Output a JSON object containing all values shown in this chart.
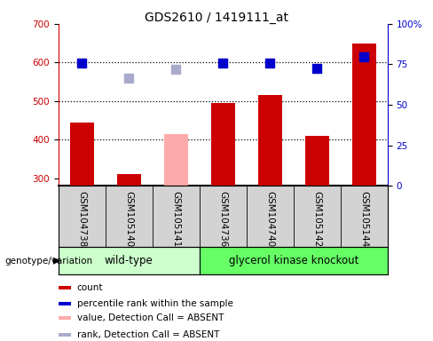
{
  "title": "GDS2610 / 1419111_at",
  "samples": [
    "GSM104738",
    "GSM105140",
    "GSM105141",
    "GSM104736",
    "GSM104740",
    "GSM105142",
    "GSM105144"
  ],
  "count_values": [
    445,
    310,
    null,
    495,
    515,
    410,
    648
  ],
  "count_absent": [
    null,
    null,
    415,
    null,
    null,
    null,
    null
  ],
  "rank_values": [
    598,
    null,
    null,
    598,
    598,
    585,
    615
  ],
  "rank_absent": [
    null,
    560,
    582,
    null,
    null,
    null,
    null
  ],
  "ylim_left": [
    280,
    700
  ],
  "ylim_right": [
    0,
    100
  ],
  "yticks_left": [
    300,
    400,
    500,
    600,
    700
  ],
  "ytick_labels_right": [
    "0",
    "25",
    "50",
    "75",
    "100%"
  ],
  "yticks_right": [
    0,
    25,
    50,
    75,
    100
  ],
  "count_color": "#cc0000",
  "count_absent_color": "#ffaaaa",
  "rank_color": "#0000cc",
  "rank_absent_color": "#aaaacc",
  "group1_color": "#ccffcc",
  "group2_color": "#66ff66",
  "group1_label": "wild-type",
  "group2_label": "glycerol kinase knockout",
  "group1_indices": [
    0,
    1,
    2
  ],
  "group2_indices": [
    3,
    4,
    5,
    6
  ],
  "legend_items": [
    {
      "label": "count",
      "color": "#cc0000"
    },
    {
      "label": "percentile rank within the sample",
      "color": "#0000cc"
    },
    {
      "label": "value, Detection Call = ABSENT",
      "color": "#ffaaaa"
    },
    {
      "label": "rank, Detection Call = ABSENT",
      "color": "#aaaacc"
    }
  ],
  "genotype_label": "genotype/variation",
  "dotted_lines": [
    400,
    500,
    600
  ],
  "bar_width": 0.5,
  "marker_size": 55,
  "xtick_bg": "#d3d3d3",
  "title_fontsize": 10,
  "tick_fontsize": 7.5,
  "label_fontsize": 7.5
}
